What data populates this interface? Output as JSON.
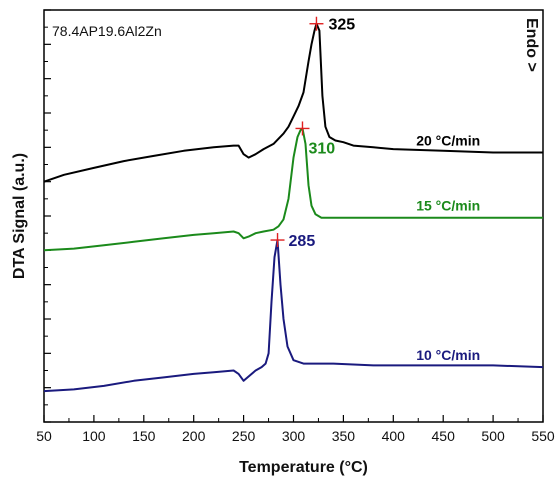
{
  "chart_data": {
    "type": "line",
    "title": "78.4AP19.6Al2Zn",
    "xlabel": "Temperature  (°C)",
    "ylabel": "DTA Signal  (a.u.)",
    "endo_label": "Endo >",
    "xlim": [
      50,
      550
    ],
    "ylim": [
      0,
      12
    ],
    "xticks": [
      50,
      100,
      150,
      200,
      250,
      300,
      350,
      400,
      450,
      500,
      550
    ],
    "y_tick_labels_shown": false,
    "grid": false,
    "legend": "none",
    "series": [
      {
        "name": "20 °C/min",
        "color": "#000000",
        "peak_label": "325",
        "peak": [
          323,
          11.6
        ],
        "x": [
          50,
          70,
          100,
          130,
          160,
          190,
          220,
          240,
          245,
          250,
          255,
          262,
          270,
          280,
          290,
          295,
          300,
          305,
          310,
          315,
          318,
          321,
          323,
          326,
          329,
          332,
          336,
          342,
          350,
          360,
          380,
          400,
          450,
          500,
          550
        ],
        "y": [
          7.0,
          7.2,
          7.4,
          7.6,
          7.75,
          7.9,
          8.0,
          8.05,
          8.05,
          7.8,
          7.7,
          7.8,
          7.95,
          8.1,
          8.4,
          8.6,
          8.9,
          9.2,
          9.6,
          10.5,
          11.0,
          11.4,
          11.6,
          11.4,
          9.5,
          8.6,
          8.3,
          8.2,
          8.15,
          8.05,
          8.0,
          7.95,
          7.9,
          7.85,
          7.85
        ]
      },
      {
        "name": "15 °C/min",
        "color": "#1b8a1b",
        "peak_label": "310",
        "peak": [
          309,
          8.55
        ],
        "x": [
          50,
          80,
          110,
          140,
          170,
          200,
          220,
          240,
          245,
          250,
          255,
          262,
          270,
          280,
          285,
          290,
          295,
          300,
          304,
          307,
          309,
          312,
          315,
          318,
          322,
          328,
          340,
          360,
          400,
          450,
          500,
          550
        ],
        "y": [
          5.0,
          5.05,
          5.15,
          5.25,
          5.35,
          5.45,
          5.5,
          5.55,
          5.5,
          5.35,
          5.4,
          5.5,
          5.55,
          5.6,
          5.7,
          5.9,
          6.5,
          7.7,
          8.3,
          8.5,
          8.55,
          8.1,
          6.9,
          6.3,
          6.05,
          5.95,
          5.95,
          5.95,
          5.95,
          5.95,
          5.95,
          5.95
        ]
      },
      {
        "name": "10 °C/min",
        "color": "#1a1a7e",
        "peak_label": "285",
        "peak": [
          284,
          5.3
        ],
        "x": [
          50,
          80,
          110,
          140,
          170,
          200,
          220,
          240,
          245,
          250,
          256,
          262,
          268,
          272,
          275,
          278,
          281,
          284,
          287,
          290,
          294,
          300,
          310,
          320,
          340,
          380,
          420,
          460,
          500,
          550
        ],
        "y": [
          0.9,
          0.95,
          1.05,
          1.2,
          1.3,
          1.4,
          1.45,
          1.5,
          1.4,
          1.2,
          1.35,
          1.5,
          1.6,
          1.7,
          2.0,
          3.5,
          4.8,
          5.3,
          4.0,
          3.0,
          2.2,
          1.8,
          1.7,
          1.7,
          1.7,
          1.65,
          1.65,
          1.65,
          1.65,
          1.6
        ]
      }
    ]
  }
}
